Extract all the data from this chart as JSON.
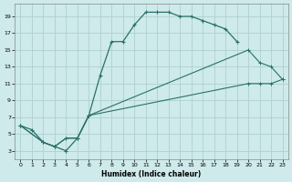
{
  "xlabel": "Humidex (Indice chaleur)",
  "background_color": "#ceeaea",
  "grid_color": "#aed0d0",
  "line_color": "#2a7068",
  "xlim": [
    -0.5,
    23.5
  ],
  "ylim": [
    2,
    20.5
  ],
  "xticks": [
    0,
    1,
    2,
    3,
    4,
    5,
    6,
    7,
    8,
    9,
    10,
    11,
    12,
    13,
    14,
    15,
    16,
    17,
    18,
    19,
    20,
    21,
    22,
    23
  ],
  "yticks": [
    3,
    5,
    7,
    9,
    11,
    13,
    15,
    17,
    19
  ],
  "curve1_x": [
    0,
    1,
    2,
    3,
    4,
    5,
    6,
    7,
    8,
    9,
    10,
    11,
    12,
    13,
    14,
    15,
    16,
    17,
    18,
    19
  ],
  "curve1_y": [
    6,
    5.5,
    4,
    3.5,
    3,
    4.5,
    7.2,
    12,
    16,
    16,
    18,
    19.5,
    19.5,
    19.5,
    19,
    19,
    18.5,
    18,
    17.5,
    16
  ],
  "curve2_x": [
    0,
    2,
    3,
    4,
    5,
    6,
    20,
    21,
    22,
    23
  ],
  "curve2_y": [
    6,
    4,
    3.5,
    4.5,
    4.5,
    7.2,
    15,
    13.5,
    13,
    11.5
  ],
  "curve3_x": [
    0,
    2,
    3,
    4,
    5,
    6,
    20,
    21,
    22,
    23
  ],
  "curve3_y": [
    6,
    4,
    3.5,
    4.5,
    4.5,
    7.2,
    11,
    11,
    11,
    11.5
  ]
}
